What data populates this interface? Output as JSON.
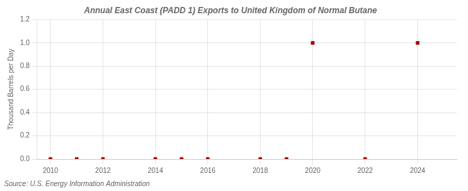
{
  "chart_data": {
    "type": "scatter",
    "title": "Annual East Coast (PADD 1) Exports to United Kingdom of Normal Butane",
    "y_label": "Thousand Barrels per Day",
    "annotation": "Source: U.S. Energy Information Administration",
    "x": [
      2010,
      2011,
      2012,
      2014,
      2015,
      2016,
      2018,
      2019,
      2020,
      2022,
      2024
    ],
    "values": [
      0.0,
      0.0,
      0.0,
      0.0,
      0.0,
      0.0,
      0.0,
      0.0,
      1.0,
      0.0,
      1.0
    ],
    "color": "#aa0000",
    "marker": "square",
    "grid": true,
    "xlim": [
      2009.5,
      2025.5
    ],
    "xticks": [
      2010,
      2012,
      2014,
      2016,
      2018,
      2020,
      2022,
      2024
    ],
    "ylim": [
      0.0,
      1.2
    ],
    "yticks": [
      {
        "value": 0.0,
        "label": "0.0"
      },
      0.2,
      0.4,
      0.6,
      0.8,
      {
        "value": 1.0,
        "label": "1.0"
      },
      1.2
    ]
  }
}
